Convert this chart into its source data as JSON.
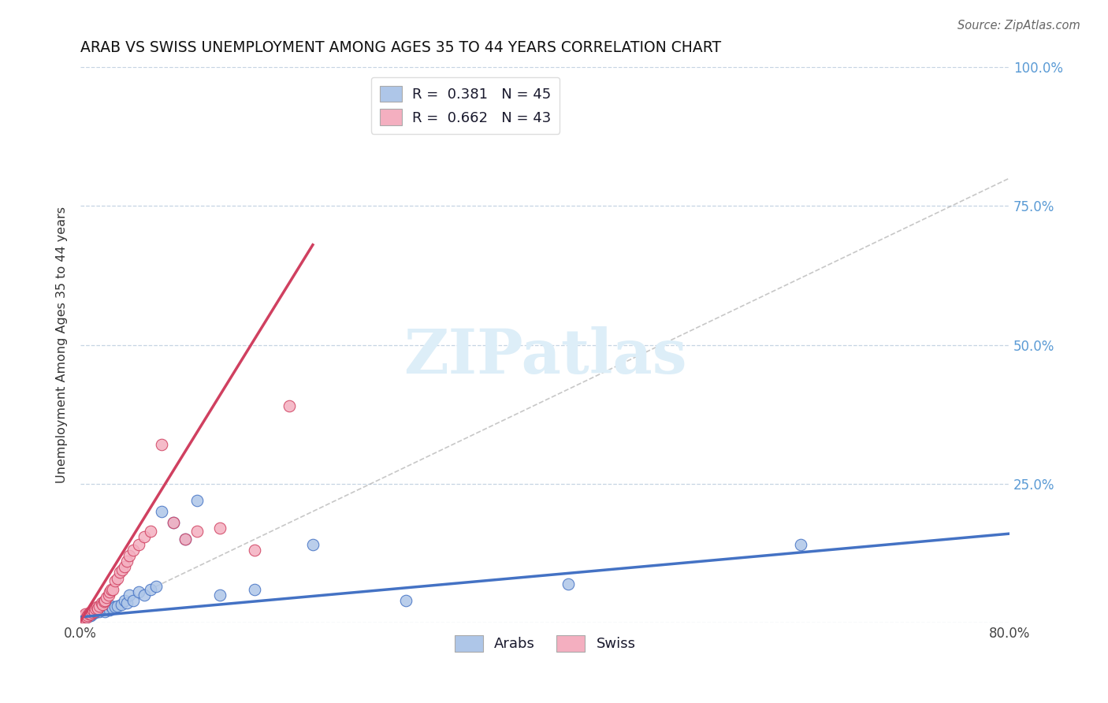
{
  "title": "ARAB VS SWISS UNEMPLOYMENT AMONG AGES 35 TO 44 YEARS CORRELATION CHART",
  "source": "Source: ZipAtlas.com",
  "ylabel": "Unemployment Among Ages 35 to 44 years",
  "xlim": [
    0,
    0.8
  ],
  "ylim": [
    0,
    1.0
  ],
  "xtick_positions": [
    0.0,
    0.1,
    0.2,
    0.3,
    0.4,
    0.5,
    0.6,
    0.7,
    0.8
  ],
  "xtick_labels": [
    "0.0%",
    "",
    "",
    "",
    "",
    "",
    "",
    "",
    "80.0%"
  ],
  "ytick_positions": [
    0.0,
    0.25,
    0.5,
    0.75,
    1.0
  ],
  "ytick_labels": [
    "",
    "25.0%",
    "50.0%",
    "75.0%",
    "100.0%"
  ],
  "arab_R": 0.381,
  "arab_N": 45,
  "swiss_R": 0.662,
  "swiss_N": 43,
  "arab_color": "#aec6e8",
  "swiss_color": "#f4afc0",
  "arab_line_color": "#4472c4",
  "swiss_line_color": "#d04060",
  "diagonal_color": "#b0b0b0",
  "watermark_text": "ZIPatlas",
  "watermark_color": "#ddeef8",
  "arab_x": [
    0.0,
    0.002,
    0.003,
    0.004,
    0.005,
    0.006,
    0.007,
    0.008,
    0.009,
    0.01,
    0.011,
    0.012,
    0.013,
    0.014,
    0.015,
    0.016,
    0.018,
    0.02,
    0.021,
    0.022,
    0.024,
    0.025,
    0.026,
    0.028,
    0.03,
    0.032,
    0.035,
    0.038,
    0.04,
    0.042,
    0.045,
    0.05,
    0.055,
    0.06,
    0.065,
    0.07,
    0.08,
    0.09,
    0.1,
    0.12,
    0.15,
    0.2,
    0.28,
    0.42,
    0.62
  ],
  "arab_y": [
    0.01,
    0.008,
    0.01,
    0.012,
    0.01,
    0.012,
    0.015,
    0.013,
    0.012,
    0.015,
    0.018,
    0.02,
    0.018,
    0.022,
    0.025,
    0.02,
    0.022,
    0.025,
    0.02,
    0.025,
    0.028,
    0.022,
    0.03,
    0.025,
    0.028,
    0.03,
    0.032,
    0.04,
    0.035,
    0.05,
    0.04,
    0.055,
    0.05,
    0.06,
    0.065,
    0.2,
    0.18,
    0.15,
    0.22,
    0.05,
    0.06,
    0.14,
    0.04,
    0.07,
    0.14
  ],
  "swiss_x": [
    0.0,
    0.002,
    0.003,
    0.004,
    0.005,
    0.006,
    0.007,
    0.008,
    0.009,
    0.01,
    0.011,
    0.012,
    0.013,
    0.014,
    0.015,
    0.016,
    0.018,
    0.019,
    0.02,
    0.021,
    0.022,
    0.024,
    0.025,
    0.026,
    0.028,
    0.03,
    0.032,
    0.034,
    0.036,
    0.038,
    0.04,
    0.042,
    0.045,
    0.05,
    0.055,
    0.06,
    0.07,
    0.08,
    0.09,
    0.1,
    0.12,
    0.15,
    0.18
  ],
  "swiss_y": [
    0.008,
    0.01,
    0.012,
    0.015,
    0.01,
    0.012,
    0.015,
    0.018,
    0.015,
    0.018,
    0.022,
    0.02,
    0.025,
    0.028,
    0.025,
    0.03,
    0.035,
    0.032,
    0.038,
    0.04,
    0.045,
    0.05,
    0.055,
    0.06,
    0.06,
    0.075,
    0.08,
    0.09,
    0.095,
    0.1,
    0.11,
    0.12,
    0.13,
    0.14,
    0.155,
    0.165,
    0.32,
    0.18,
    0.15,
    0.165,
    0.17,
    0.13,
    0.39
  ],
  "arab_line_x0": 0.0,
  "arab_line_x1": 0.8,
  "arab_line_y0": 0.01,
  "arab_line_y1": 0.16,
  "swiss_line_x0": 0.0,
  "swiss_line_x1": 0.2,
  "swiss_line_y0": 0.003,
  "swiss_line_y1": 0.68
}
